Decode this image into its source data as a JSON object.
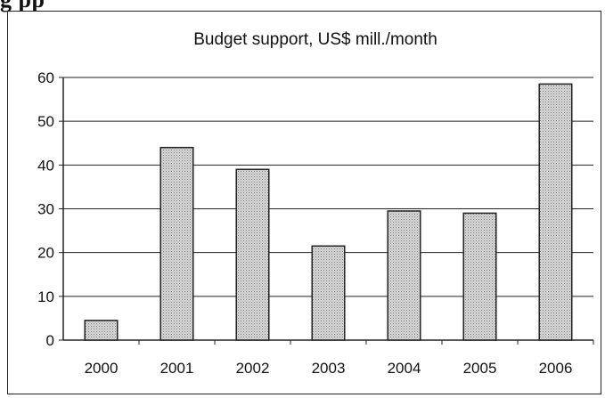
{
  "page": {
    "heading_fragment": "g  pp"
  },
  "chart_data": {
    "type": "bar",
    "title": "Budget support, US$ mill./month",
    "xlabel": "",
    "ylabel": "",
    "categories": [
      "2000",
      "2001",
      "2002",
      "2003",
      "2004",
      "2005",
      "2006"
    ],
    "values": [
      4.5,
      44,
      39,
      21.5,
      29.5,
      29,
      58.5
    ],
    "ylim": [
      0,
      60
    ],
    "yticks": [
      0,
      10,
      20,
      30,
      40,
      50,
      60
    ],
    "grid": true,
    "legend": "none",
    "colors": {
      "bar_fill": "#bdbdbd",
      "bar_stroke": "#222222",
      "grid": "#222222",
      "axis": "#222222"
    }
  }
}
